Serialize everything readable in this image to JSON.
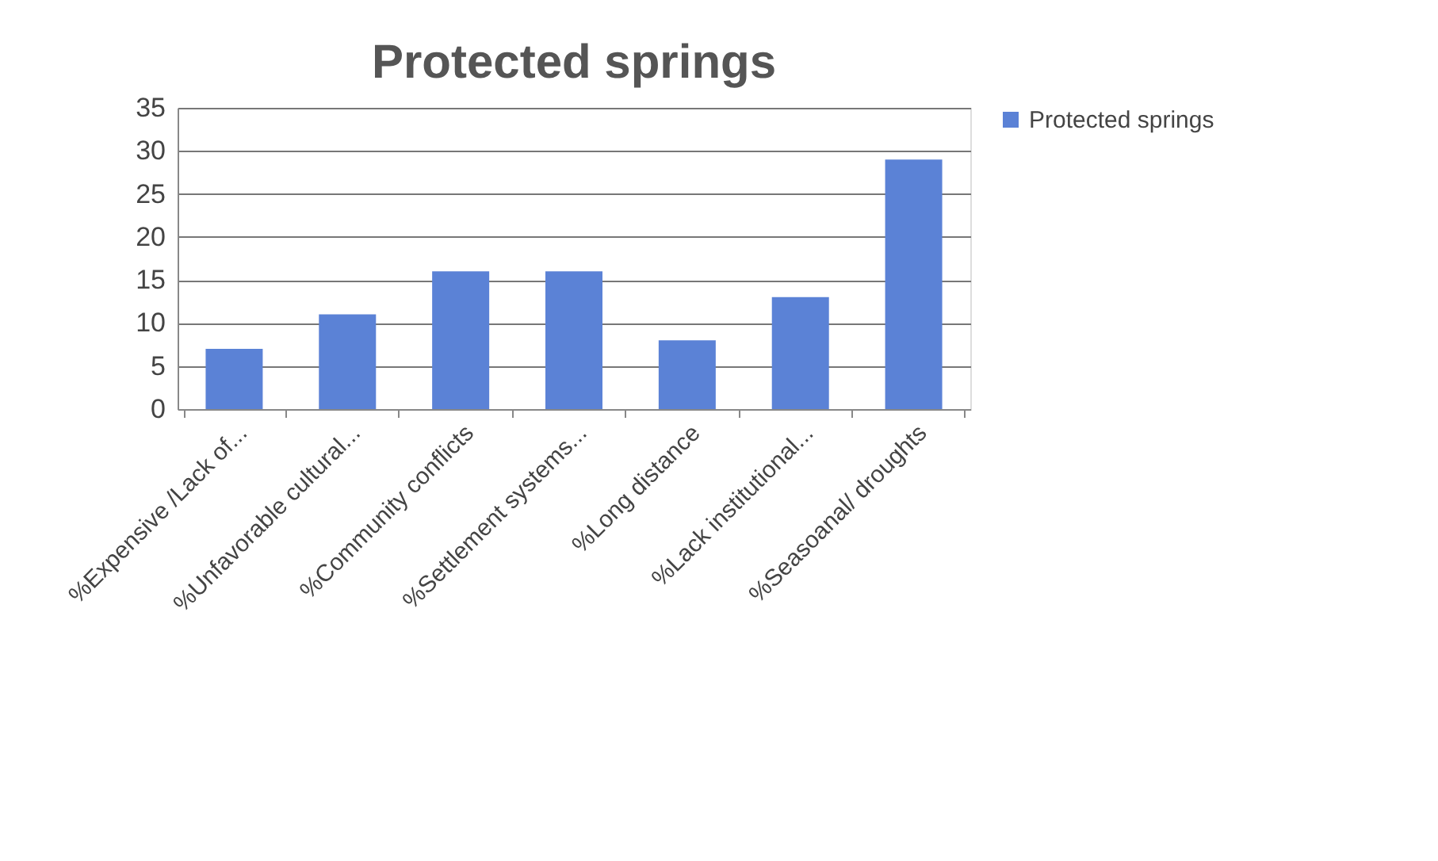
{
  "chart_data": {
    "type": "bar",
    "title": "Protected springs",
    "categories": [
      "%Expensive /Lack of...",
      "%Unfavorable cultural...",
      "%Community conflicts",
      "%Settlement systems...",
      "%Long distance",
      "%Lack institutional...",
      "%Seasoanal/ droughts"
    ],
    "series": [
      {
        "name": "Protected springs",
        "color": "#5b82d6",
        "values": [
          7,
          11,
          16,
          16,
          8,
          13,
          29
        ]
      }
    ],
    "ylim": [
      0,
      35
    ],
    "yticks": [
      0,
      5,
      10,
      15,
      20,
      25,
      30,
      35
    ],
    "grid": "y",
    "legend": "right"
  }
}
